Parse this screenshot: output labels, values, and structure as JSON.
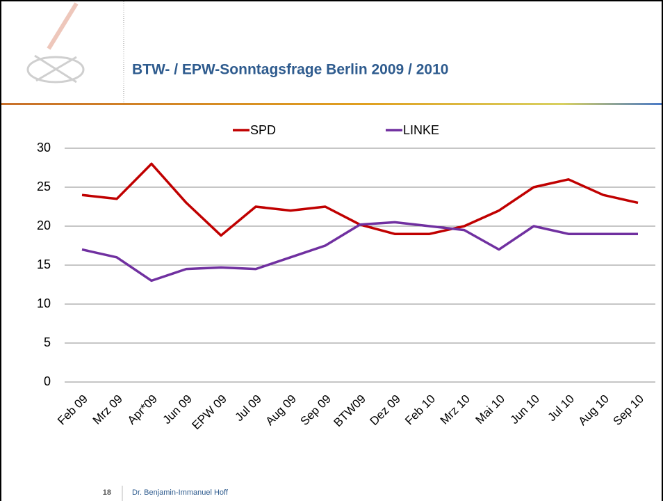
{
  "header": {
    "title": "BTW- / EPW-Sonntagsfrage Berlin 2009 / 2010"
  },
  "chart_data": {
    "type": "line",
    "categories": [
      "Feb 09",
      "Mrz 09",
      "Apr*09",
      "Jun 09",
      "EPW 09",
      "Jul 09",
      "Aug 09",
      "Sep 09",
      "BTW09",
      "Dez 09",
      "Feb 10",
      "Mrz 10",
      "Mai 10",
      "Jun 10",
      "Jul 10",
      "Aug 10",
      "Sep 10"
    ],
    "series": [
      {
        "name": "SPD",
        "color": "#c00000",
        "values": [
          24,
          23.5,
          28,
          23,
          18.8,
          22.5,
          22,
          22.5,
          20.2,
          19,
          19,
          20,
          22,
          25,
          26,
          24,
          23
        ]
      },
      {
        "name": "LINKE",
        "color": "#7030a0",
        "values": [
          17,
          16,
          13,
          14.5,
          14.7,
          14.5,
          16,
          17.5,
          20.2,
          20.5,
          20,
          19.5,
          17,
          20,
          19,
          19,
          19
        ]
      }
    ],
    "ylim": [
      0,
      30
    ],
    "yticks": [
      0,
      5,
      10,
      15,
      20,
      25,
      30
    ],
    "grid": true,
    "legend": "top"
  },
  "footer": {
    "page": 18,
    "author": "Dr. Benjamin-Immanuel Hoff"
  }
}
